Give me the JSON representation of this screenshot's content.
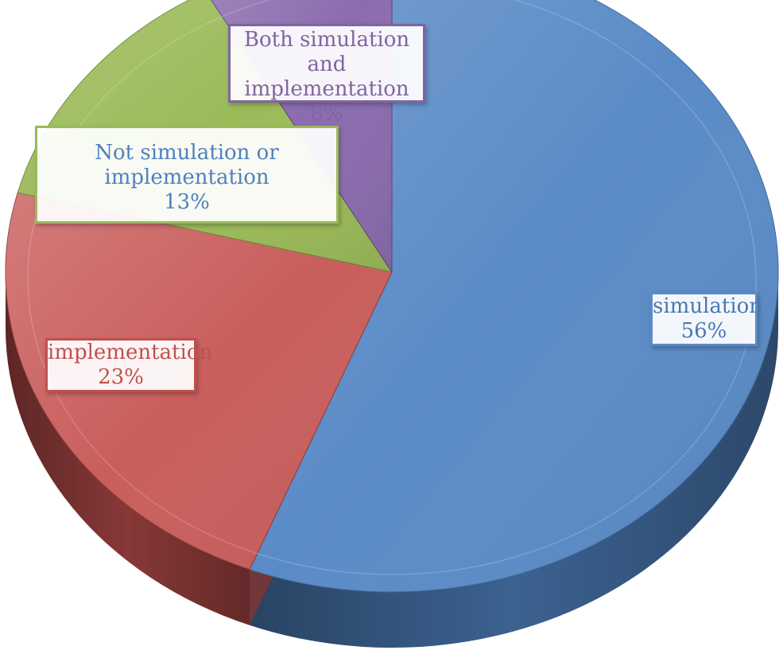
{
  "chart_data": {
    "type": "pie",
    "title": "",
    "slices": [
      {
        "label_lines": [
          "simulation"
        ],
        "value": 56,
        "value_label": "56%",
        "color": "#5B8BC7",
        "side_color": "#3F6798",
        "text_color": "#4A78B4",
        "border": "#5B8BC7"
      },
      {
        "label_lines": [
          "implementation"
        ],
        "value": 23,
        "value_label": "23%",
        "color": "#C95F5D",
        "side_color": "#8E3B3A",
        "text_color": "#C0504D",
        "border": "#C0504D"
      },
      {
        "label_lines": [
          "Not simulation or",
          "implementation"
        ],
        "value": 13,
        "value_label": "13%",
        "color": "#9BBB59",
        "side_color": "#6E8A38",
        "text_color": "#4F81BD",
        "border": "#9BBB59"
      },
      {
        "label_lines": [
          "Both simulation and",
          "implementation"
        ],
        "value": 8,
        "value_label": "8%",
        "color": "#8B6CAE",
        "side_color": "#5E4478",
        "text_color": "#8064A2",
        "border": "#8064A2"
      }
    ]
  }
}
